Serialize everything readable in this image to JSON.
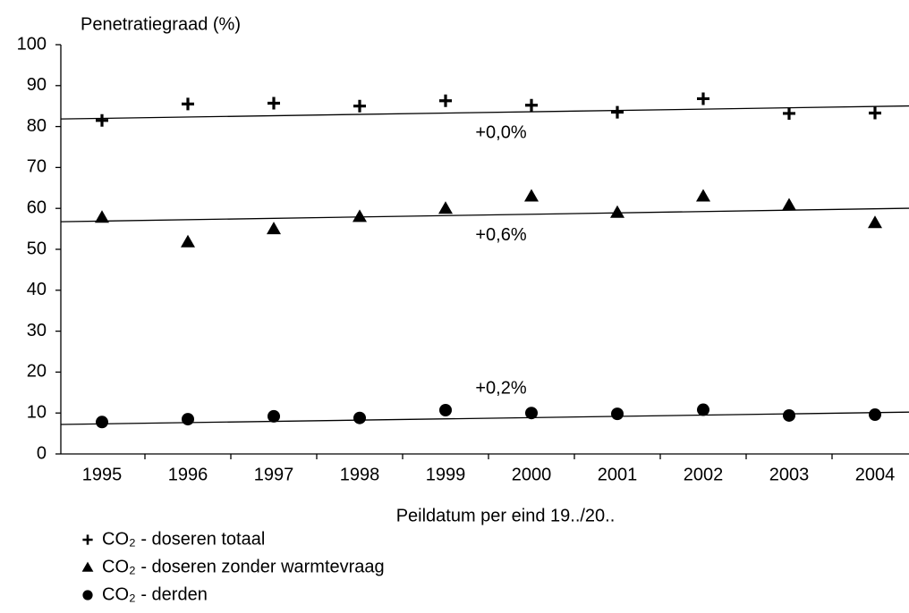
{
  "chart_data": {
    "type": "scatter",
    "y_label": "Penetratiegraad (%)",
    "x_label": "Peildatum per eind 19../20..",
    "categories": [
      "1995",
      "1996",
      "1997",
      "1998",
      "1999",
      "2000",
      "2001",
      "2002",
      "2003",
      "2004"
    ],
    "ylim": [
      0,
      100
    ],
    "yticks": [
      0,
      10,
      20,
      30,
      40,
      50,
      60,
      70,
      80,
      90,
      100
    ],
    "legend": "bottom-left",
    "series": [
      {
        "name": "CO₂ - doseren totaal",
        "color": "#000000",
        "marker": "plus",
        "values": [
          81.5,
          85.5,
          85.7,
          85,
          86.3,
          85.2,
          83.5,
          86.8,
          83.2,
          83.3
        ],
        "trend": [
          82,
          84.9
        ],
        "annotation": "+0,0%"
      },
      {
        "name": "CO₂ - doseren zonder warmtevraag",
        "color": "#000000",
        "marker": "triangle",
        "values": [
          57.8,
          51.8,
          55,
          58,
          60,
          63,
          59,
          63,
          60.8,
          56.5
        ],
        "trend": [
          56.9,
          59.9
        ],
        "annotation": "+0,6%"
      },
      {
        "name": "CO₂ - derden",
        "color": "#000000",
        "marker": "circle",
        "values": [
          7.8,
          8.5,
          9.2,
          8.8,
          10.7,
          10,
          9.8,
          10.8,
          9.4,
          9.6
        ],
        "trend": [
          7.35,
          10.1
        ],
        "annotation": "+0,2%"
      }
    ]
  }
}
